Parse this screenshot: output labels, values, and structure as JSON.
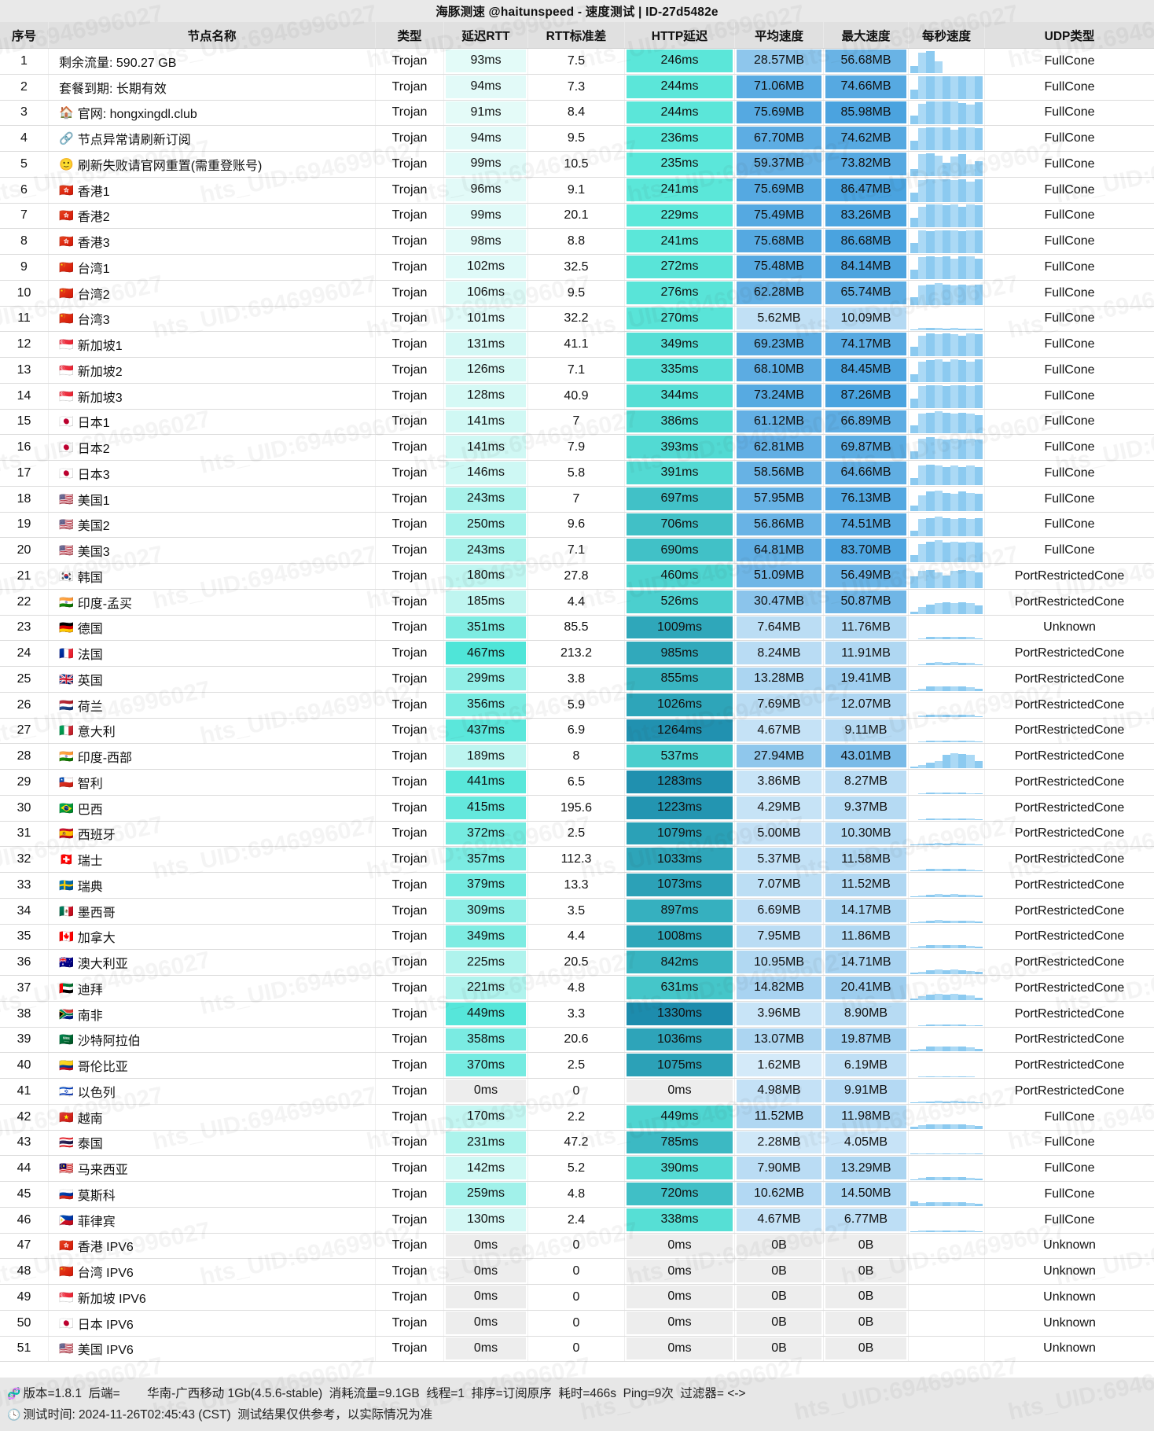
{
  "title": "海豚测速 @haitunspeed - 速度测试 | ID-27d5482e",
  "watermark_text": "hts_UID:6946996027",
  "columns": [
    {
      "key": "idx",
      "label": "序号"
    },
    {
      "key": "name",
      "label": "节点名称"
    },
    {
      "key": "type",
      "label": "类型"
    },
    {
      "key": "rtt",
      "label": "延迟RTT"
    },
    {
      "key": "std",
      "label": "RTT标准差"
    },
    {
      "key": "http",
      "label": "HTTP延迟"
    },
    {
      "key": "avg",
      "label": "平均速度"
    },
    {
      "key": "max",
      "label": "最大速度"
    },
    {
      "key": "spark",
      "label": "每秒速度"
    },
    {
      "key": "udp",
      "label": "UDP类型"
    }
  ],
  "row_fields": [
    "index",
    "icon",
    "name",
    "type",
    "rtt_ms",
    "rtt_std",
    "http_ms",
    "avg_speed",
    "max_speed",
    "udp_type",
    "spark"
  ],
  "rows": [
    [
      1,
      "",
      "剩余流量: 590.27 GB",
      "Trojan",
      93,
      "7.5",
      246,
      "28.57MB",
      "56.68MB",
      "FullCone",
      [
        0.32,
        0.9,
        0.95,
        0.52,
        0,
        0,
        0,
        0,
        0
      ]
    ],
    [
      2,
      "",
      "套餐到期: 长期有效",
      "Trojan",
      94,
      "7.3",
      244,
      "71.06MB",
      "74.66MB",
      "FullCone",
      [
        0.42,
        1,
        1,
        1,
        1,
        1,
        1,
        1,
        1
      ]
    ],
    [
      3,
      "🏠",
      "官网: hongxingdl.club",
      "Trojan",
      91,
      "8.4",
      244,
      "75.69MB",
      "85.98MB",
      "FullCone",
      [
        0.38,
        0.9,
        1,
        1,
        1,
        1,
        0.92,
        0.85,
        0.95
      ]
    ],
    [
      4,
      "🔗",
      "节点异常请刷新订阅",
      "Trojan",
      94,
      "9.5",
      236,
      "67.70MB",
      "74.62MB",
      "FullCone",
      [
        0.4,
        0.95,
        1,
        1,
        1,
        0.9,
        1,
        1,
        0.95
      ]
    ],
    [
      5,
      "🙂",
      "刷新失败请官网重置(需重登账号)",
      "Trojan",
      99,
      "10.5",
      235,
      "59.37MB",
      "73.82MB",
      "FullCone",
      [
        0.3,
        0.95,
        1,
        0.9,
        0.6,
        0.85,
        0.95,
        0.5,
        0.65
      ]
    ],
    [
      6,
      "🇭🇰",
      "香港1",
      "Trojan",
      96,
      "9.1",
      241,
      "75.69MB",
      "86.47MB",
      "FullCone",
      [
        0.42,
        0.95,
        1,
        1,
        1,
        0.95,
        1,
        0.9,
        1
      ]
    ],
    [
      7,
      "🇭🇰",
      "香港2",
      "Trojan",
      99,
      "20.1",
      229,
      "75.49MB",
      "83.26MB",
      "FullCone",
      [
        0.4,
        0.9,
        1,
        1,
        0.95,
        1,
        0.9,
        1,
        0.95
      ]
    ],
    [
      8,
      "🇭🇰",
      "香港3",
      "Trojan",
      98,
      "8.8",
      241,
      "75.68MB",
      "86.68MB",
      "FullCone",
      [
        0.45,
        1,
        0.95,
        1,
        1,
        1,
        0.95,
        1,
        1
      ]
    ],
    [
      9,
      "🇨🇳",
      "台湾1",
      "Trojan",
      102,
      "32.5",
      272,
      "75.48MB",
      "84.14MB",
      "FullCone",
      [
        0.4,
        0.95,
        1,
        0.95,
        1,
        0.9,
        1,
        1,
        0.9
      ]
    ],
    [
      10,
      "🇨🇳",
      "台湾2",
      "Trojan",
      106,
      "9.5",
      276,
      "62.28MB",
      "65.74MB",
      "FullCone",
      [
        0.35,
        0.85,
        0.9,
        0.95,
        0.9,
        0.85,
        0.9,
        0.85,
        0.9
      ]
    ],
    [
      11,
      "🇨🇳",
      "台湾3",
      "Trojan",
      101,
      "32.2",
      270,
      "5.62MB",
      "10.09MB",
      "FullCone",
      [
        0.05,
        0.1,
        0.12,
        0.1,
        0.08,
        0.1,
        0.08,
        0.06,
        0.08
      ]
    ],
    [
      12,
      "🇸🇬",
      "新加坡1",
      "Trojan",
      131,
      "41.1",
      349,
      "69.23MB",
      "74.17MB",
      "FullCone",
      [
        0.4,
        0.9,
        1,
        0.95,
        1,
        0.95,
        0.9,
        1,
        0.95
      ]
    ],
    [
      13,
      "🇸🇬",
      "新加坡2",
      "Trojan",
      126,
      "7.1",
      335,
      "68.10MB",
      "84.45MB",
      "FullCone",
      [
        0.35,
        0.9,
        0.95,
        1,
        0.9,
        1,
        0.95,
        0.9,
        1
      ]
    ],
    [
      14,
      "🇸🇬",
      "新加坡3",
      "Trojan",
      128,
      "40.9",
      344,
      "73.24MB",
      "87.26MB",
      "FullCone",
      [
        0.4,
        0.95,
        1,
        1,
        0.95,
        1,
        1,
        0.95,
        1
      ]
    ],
    [
      15,
      "🇯🇵",
      "日本1",
      "Trojan",
      141,
      "7",
      386,
      "61.12MB",
      "66.89MB",
      "FullCone",
      [
        0.35,
        0.85,
        0.9,
        0.95,
        0.9,
        0.85,
        0.9,
        0.85,
        0.8
      ]
    ],
    [
      16,
      "🇯🇵",
      "日本2",
      "Trojan",
      141,
      "7.9",
      393,
      "62.81MB",
      "69.87MB",
      "FullCone",
      [
        0.35,
        0.9,
        0.95,
        0.9,
        0.85,
        0.9,
        0.85,
        0.9,
        0.85
      ]
    ],
    [
      17,
      "🇯🇵",
      "日本3",
      "Trojan",
      146,
      "5.8",
      391,
      "58.56MB",
      "64.66MB",
      "FullCone",
      [
        0.3,
        0.85,
        0.9,
        0.85,
        0.8,
        0.85,
        0.8,
        0.85,
        0.8
      ]
    ],
    [
      18,
      "🇺🇸",
      "美国1",
      "Trojan",
      243,
      "7",
      697,
      "57.95MB",
      "76.13MB",
      "FullCone",
      [
        0.25,
        0.7,
        0.85,
        0.9,
        0.8,
        0.75,
        0.85,
        0.8,
        0.75
      ]
    ],
    [
      19,
      "🇺🇸",
      "美国2",
      "Trojan",
      250,
      "9.6",
      706,
      "56.86MB",
      "74.51MB",
      "FullCone",
      [
        0.25,
        0.75,
        0.8,
        0.85,
        0.8,
        0.75,
        0.8,
        0.75,
        0.8
      ]
    ],
    [
      20,
      "🇺🇸",
      "美国3",
      "Trojan",
      243,
      "7.1",
      690,
      "64.81MB",
      "83.70MB",
      "FullCone",
      [
        0.3,
        0.8,
        0.9,
        0.95,
        0.85,
        0.9,
        0.85,
        0.9,
        0.85
      ]
    ],
    [
      21,
      "🇰🇷",
      "韩国",
      "Trojan",
      180,
      "27.8",
      460,
      "51.09MB",
      "56.49MB",
      "PortRestrictedCone",
      [
        0.5,
        0.75,
        0.8,
        0.7,
        0.55,
        0.75,
        0.8,
        0.75,
        0.7
      ]
    ],
    [
      22,
      "🇮🇳",
      "印度-孟买",
      "Trojan",
      185,
      "4.4",
      526,
      "30.47MB",
      "50.87MB",
      "PortRestrictedCone",
      [
        0.12,
        0.3,
        0.42,
        0.48,
        0.5,
        0.48,
        0.5,
        0.48,
        0.38
      ]
    ],
    [
      23,
      "🇩🇪",
      "德国",
      "Trojan",
      351,
      "85.5",
      1009,
      "7.64MB",
      "11.76MB",
      "Unknown",
      [
        0,
        0.05,
        0.1,
        0.12,
        0.12,
        0.12,
        0.1,
        0.1,
        0.05
      ]
    ],
    [
      24,
      "🇫🇷",
      "法国",
      "Trojan",
      467,
      "213.2",
      985,
      "8.24MB",
      "11.91MB",
      "PortRestrictedCone",
      [
        0,
        0.05,
        0.12,
        0.13,
        0.12,
        0.13,
        0.12,
        0.1,
        0.05
      ]
    ],
    [
      25,
      "🇬🇧",
      "英国",
      "Trojan",
      299,
      "3.8",
      855,
      "13.28MB",
      "19.41MB",
      "PortRestrictedCone",
      [
        0.05,
        0.12,
        0.2,
        0.22,
        0.2,
        0.22,
        0.2,
        0.18,
        0.1
      ]
    ],
    [
      26,
      "🇳🇱",
      "荷兰",
      "Trojan",
      356,
      "5.9",
      1026,
      "7.69MB",
      "12.07MB",
      "PortRestrictedCone",
      [
        0,
        0.06,
        0.1,
        0.12,
        0.12,
        0.1,
        0.12,
        0.1,
        0.05
      ]
    ],
    [
      27,
      "🇮🇹",
      "意大利",
      "Trojan",
      437,
      "6.9",
      1264,
      "4.67MB",
      "9.11MB",
      "PortRestrictedCone",
      [
        0,
        0.04,
        0.07,
        0.08,
        0.08,
        0.08,
        0.07,
        0.06,
        0.04
      ]
    ],
    [
      28,
      "🇮🇳",
      "印度-西部",
      "Trojan",
      189,
      "8",
      537,
      "27.94MB",
      "43.01MB",
      "PortRestrictedCone",
      [
        0.08,
        0.15,
        0.25,
        0.3,
        0.6,
        0.65,
        0.62,
        0.6,
        0.3
      ]
    ],
    [
      29,
      "🇨🇱",
      "智利",
      "Trojan",
      441,
      "6.5",
      1283,
      "3.86MB",
      "8.27MB",
      "PortRestrictedCone",
      [
        0,
        0.04,
        0.06,
        0.07,
        0.07,
        0.06,
        0.06,
        0.05,
        0.03
      ]
    ],
    [
      30,
      "🇧🇷",
      "巴西",
      "Trojan",
      415,
      "195.6",
      1223,
      "4.29MB",
      "9.37MB",
      "PortRestrictedCone",
      [
        0,
        0.04,
        0.07,
        0.08,
        0.07,
        0.08,
        0.07,
        0.06,
        0.04
      ]
    ],
    [
      31,
      "🇪🇸",
      "西班牙",
      "Trojan",
      372,
      "2.5",
      1079,
      "5.00MB",
      "10.30MB",
      "PortRestrictedCone",
      [
        0.04,
        0.06,
        0.08,
        0.09,
        0.08,
        0.09,
        0.08,
        0.07,
        0.05
      ]
    ],
    [
      32,
      "🇨🇭",
      "瑞士",
      "Trojan",
      357,
      "112.3",
      1033,
      "5.37MB",
      "11.58MB",
      "PortRestrictedCone",
      [
        0.04,
        0.07,
        0.09,
        0.1,
        0.09,
        0.1,
        0.09,
        0.08,
        0.05
      ]
    ],
    [
      33,
      "🇸🇪",
      "瑞典",
      "Trojan",
      379,
      "13.3",
      1073,
      "7.07MB",
      "11.52MB",
      "PortRestrictedCone",
      [
        0.05,
        0.08,
        0.12,
        0.13,
        0.12,
        0.13,
        0.12,
        0.1,
        0.06
      ]
    ],
    [
      34,
      "🇲🇽",
      "墨西哥",
      "Trojan",
      309,
      "3.5",
      897,
      "6.69MB",
      "14.17MB",
      "PortRestrictedCone",
      [
        0.04,
        0.08,
        0.12,
        0.13,
        0.12,
        0.11,
        0.12,
        0.1,
        0.06
      ]
    ],
    [
      35,
      "🇨🇦",
      "加拿大",
      "Trojan",
      349,
      "4.4",
      1008,
      "7.95MB",
      "11.86MB",
      "PortRestrictedCone",
      [
        0.05,
        0.09,
        0.13,
        0.14,
        0.13,
        0.14,
        0.13,
        0.11,
        0.07
      ]
    ],
    [
      36,
      "🇦🇺",
      "澳大利亚",
      "Trojan",
      225,
      "20.5",
      842,
      "10.95MB",
      "14.71MB",
      "PortRestrictedCone",
      [
        0.06,
        0.12,
        0.18,
        0.2,
        0.18,
        0.2,
        0.18,
        0.15,
        0.1
      ]
    ],
    [
      37,
      "🇦🇪",
      "迪拜",
      "Trojan",
      221,
      "4.8",
      631,
      "14.82MB",
      "20.41MB",
      "PortRestrictedCone",
      [
        0.08,
        0.16,
        0.24,
        0.26,
        0.24,
        0.26,
        0.24,
        0.2,
        0.12
      ]
    ],
    [
      38,
      "🇿🇦",
      "南非",
      "Trojan",
      449,
      "3.3",
      1330,
      "3.96MB",
      "8.90MB",
      "PortRestrictedCone",
      [
        0,
        0.04,
        0.06,
        0.07,
        0.07,
        0.06,
        0.06,
        0.05,
        0.03
      ]
    ],
    [
      39,
      "🇸🇦",
      "沙特阿拉伯",
      "Trojan",
      358,
      "20.6",
      1036,
      "13.07MB",
      "19.87MB",
      "PortRestrictedCone",
      [
        0.06,
        0.12,
        0.2,
        0.22,
        0.2,
        0.22,
        0.2,
        0.16,
        0.1
      ]
    ],
    [
      40,
      "🇨🇴",
      "哥伦比亚",
      "Trojan",
      370,
      "2.5",
      1075,
      "1.62MB",
      "6.19MB",
      "PortRestrictedCone",
      [
        0,
        0.02,
        0.03,
        0.03,
        0.03,
        0.03,
        0.03,
        0.02,
        0.01
      ]
    ],
    [
      41,
      "🇮🇱",
      "以色列",
      "Trojan",
      0,
      "0",
      0,
      "4.98MB",
      "9.91MB",
      "PortRestrictedCone",
      [
        0.03,
        0.06,
        0.08,
        0.09,
        0.08,
        0.09,
        0.08,
        0.06,
        0.04
      ]
    ],
    [
      42,
      "🇻🇳",
      "越南",
      "Trojan",
      170,
      "2.2",
      449,
      "11.52MB",
      "11.98MB",
      "FullCone",
      [
        0.1,
        0.16,
        0.19,
        0.2,
        0.19,
        0.2,
        0.19,
        0.18,
        0.15
      ]
    ],
    [
      43,
      "🇹🇭",
      "泰国",
      "Trojan",
      231,
      "47.2",
      785,
      "2.28MB",
      "4.05MB",
      "FullCone",
      [
        0.02,
        0.03,
        0.04,
        0.04,
        0.04,
        0.04,
        0.03,
        0.03,
        0.02
      ]
    ],
    [
      44,
      "🇲🇾",
      "马来西亚",
      "Trojan",
      142,
      "5.2",
      390,
      "7.90MB",
      "13.29MB",
      "FullCone",
      [
        0.05,
        0.1,
        0.13,
        0.14,
        0.13,
        0.14,
        0.13,
        0.11,
        0.07
      ]
    ],
    [
      45,
      "🇷🇺",
      "莫斯科",
      "Trojan",
      259,
      "4.8",
      720,
      "10.62MB",
      "14.50MB",
      "FullCone",
      [
        0.22,
        0.14,
        0.16,
        0.17,
        0.16,
        0.17,
        0.16,
        0.15,
        0.12
      ]
    ],
    [
      46,
      "🇵🇭",
      "菲律宾",
      "Trojan",
      130,
      "2.4",
      338,
      "4.67MB",
      "6.77MB",
      "FullCone",
      [
        0.04,
        0.06,
        0.08,
        0.08,
        0.08,
        0.07,
        0.08,
        0.07,
        0.05
      ]
    ],
    [
      47,
      "🇭🇰",
      "香港 IPV6",
      "Trojan",
      0,
      "0",
      0,
      "0B",
      "0B",
      "Unknown",
      [
        0,
        0,
        0,
        0,
        0,
        0,
        0,
        0,
        0
      ]
    ],
    [
      48,
      "🇨🇳",
      "台湾 IPV6",
      "Trojan",
      0,
      "0",
      0,
      "0B",
      "0B",
      "Unknown",
      [
        0,
        0,
        0,
        0,
        0,
        0,
        0,
        0,
        0
      ]
    ],
    [
      49,
      "🇸🇬",
      "新加坡 IPV6",
      "Trojan",
      0,
      "0",
      0,
      "0B",
      "0B",
      "Unknown",
      [
        0,
        0,
        0,
        0,
        0,
        0,
        0,
        0,
        0
      ]
    ],
    [
      50,
      "🇯🇵",
      "日本 IPV6",
      "Trojan",
      0,
      "0",
      0,
      "0B",
      "0B",
      "Unknown",
      [
        0,
        0,
        0,
        0,
        0,
        0,
        0,
        0,
        0
      ]
    ],
    [
      51,
      "🇺🇸",
      "美国 IPV6",
      "Trojan",
      0,
      "0",
      0,
      "0B",
      "0B",
      "Unknown",
      [
        0,
        0,
        0,
        0,
        0,
        0,
        0,
        0,
        0
      ]
    ]
  ],
  "footer": {
    "line1_icon": "🧬",
    "line1": "版本=1.8.1  后端=        华南-广西移动 1Gb(4.5.6-stable)  消耗流量=9.1GB  线程=1  排序=订阅原序  耗时=466s  Ping=9次  过滤器= <->",
    "line2_icon": "🕓",
    "line2": "测试时间: 2024-11-26T02:45:43 (CST)  测试结果仅供参考，以实际情况为准"
  },
  "colors": {
    "rtt_low": "#e6fbf9",
    "rtt_high": "#4ee5d8",
    "http_low": "#5ce8da",
    "http_high": "#1d8cad",
    "speed_low": "#eaf5fd",
    "speed_high": "#4aa3df",
    "zero_bg": "#ededed",
    "bar_a": "#8ccaf0",
    "bar_b": "#abd9f5",
    "title_bg": "#e9e9e9",
    "header_bg": "#e0e0e0",
    "footer_bg": "#e7e7e7"
  },
  "scales": {
    "rtt_range": [
      85,
      470
    ],
    "http_range": [
      225,
      1330
    ],
    "speed_max_mb": 87
  }
}
